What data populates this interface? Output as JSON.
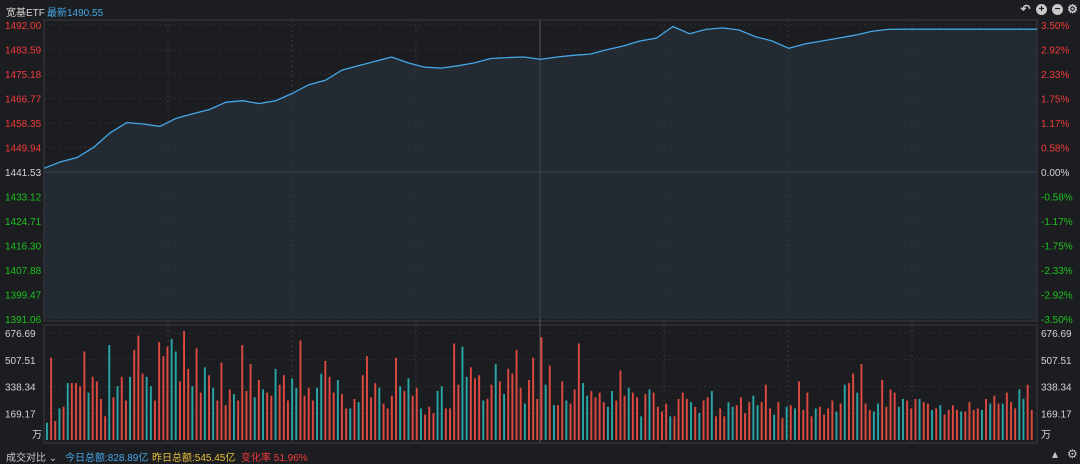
{
  "header": {
    "name": "宽基ETF",
    "latest": "最新1490.55"
  },
  "controls": [
    "undo-icon",
    "zoom-in-icon",
    "zoom-out-icon",
    "settings-icon"
  ],
  "colors": {
    "up": "#f23b3b",
    "down": "#1dc21d",
    "neutral": "#d4d4d4",
    "line": "#45a7e8",
    "vol_up": "#e0493f",
    "vol_down": "#2aa6a6"
  },
  "chart_data": [
    {
      "type": "line",
      "name": "宽基ETF intraday",
      "base": 1441.53,
      "ylim": [
        1391.06,
        1492.0
      ],
      "left_ticks": [
        "1492.00",
        "1483.59",
        "1475.18",
        "1466.77",
        "1458.35",
        "1449.94",
        "1441.53",
        "1433.12",
        "1424.71",
        "1416.30",
        "1407.88",
        "1399.47",
        "1391.06"
      ],
      "right_ticks": [
        "3.50%",
        "2.92%",
        "2.33%",
        "1.75%",
        "1.17%",
        "0.58%",
        "0.00%",
        "-0.58%",
        "-1.17%",
        "-1.75%",
        "-2.33%",
        "-2.92%",
        "-3.50%"
      ],
      "points_index": [
        0,
        4,
        8,
        12,
        16,
        20,
        24,
        28,
        32,
        36,
        40,
        44,
        48,
        52,
        56,
        60,
        64,
        68,
        72,
        76,
        80,
        84,
        88,
        92,
        96,
        100,
        104,
        108,
        112,
        116,
        120,
        124,
        128,
        132,
        136,
        140,
        144,
        148,
        152,
        156,
        160,
        164,
        168,
        172,
        176,
        180,
        184,
        188,
        192,
        196,
        200,
        204,
        208,
        212,
        216,
        220,
        224,
        228,
        232,
        236,
        240
      ],
      "values": [
        1442.8,
        1445.0,
        1446.5,
        1450.0,
        1455.0,
        1458.5,
        1458.0,
        1457.2,
        1460.0,
        1461.5,
        1463.0,
        1465.5,
        1466.0,
        1465.0,
        1466.0,
        1468.5,
        1471.5,
        1473.0,
        1476.5,
        1478.0,
        1479.5,
        1481.0,
        1479.0,
        1477.5,
        1477.2,
        1478.0,
        1479.0,
        1480.5,
        1480.8,
        1481.0,
        1480.2,
        1481.0,
        1481.6,
        1482.0,
        1483.5,
        1484.8,
        1486.5,
        1487.5,
        1491.5,
        1489.0,
        1490.5,
        1491.0,
        1490.3,
        1488.0,
        1486.5,
        1484.0,
        1485.5,
        1486.5,
        1487.5,
        1488.5,
        1489.8,
        1490.5,
        1490.55,
        1490.55,
        1490.55,
        1490.55,
        1490.55,
        1490.55,
        1490.55,
        1490.55,
        1490.55
      ]
    },
    {
      "type": "bar",
      "name": "成交额",
      "ylim": [
        0,
        676.69
      ],
      "ticks": [
        "676.69",
        "507.51",
        "338.34",
        "169.17"
      ],
      "unit": "万",
      "values": [
        110,
        520,
        120,
        200,
        210,
        360,
        360,
        360,
        340,
        560,
        300,
        400,
        370,
        260,
        150,
        600,
        270,
        340,
        400,
        250,
        400,
        570,
        660,
        420,
        400,
        340,
        250,
        620,
        530,
        590,
        640,
        560,
        370,
        690,
        450,
        340,
        580,
        300,
        460,
        410,
        330,
        250,
        490,
        220,
        320,
        290,
        250,
        600,
        310,
        480,
        270,
        380,
        320,
        300,
        280,
        450,
        350,
        410,
        250,
        390,
        330,
        630,
        280,
        330,
        250,
        330,
        420,
        500,
        400,
        300,
        380,
        290,
        200,
        200,
        260,
        240,
        410,
        530,
        270,
        360,
        330,
        230,
        200,
        280,
        520,
        340,
        310,
        390,
        280,
        330,
        200,
        160,
        210,
        170,
        310,
        340,
        200,
        200,
        610,
        350,
        590,
        400,
        460,
        390,
        410,
        250,
        260,
        350,
        480,
        370,
        290,
        450,
        420,
        570,
        330,
        230,
        380,
        520,
        260,
        650,
        350,
        470,
        220,
        220,
        370,
        250,
        230,
        320,
        610,
        360,
        280,
        310,
        270,
        300,
        240,
        210,
        310,
        250,
        440,
        280,
        330,
        300,
        270,
        150,
        290,
        320,
        300,
        210,
        180,
        230,
        150,
        150,
        260,
        300,
        260,
        240,
        210,
        170,
        250,
        270,
        310,
        150,
        200,
        150,
        240,
        210,
        220,
        270,
        170,
        240,
        280,
        220,
        240,
        350,
        200,
        160,
        240,
        140,
        210,
        220,
        200,
        370,
        190,
        300,
        150,
        200,
        210,
        160,
        200,
        250,
        180,
        230,
        350,
        360,
        420,
        300,
        480,
        230,
        190,
        180,
        230,
        380,
        210,
        320,
        300,
        210,
        260,
        250,
        200,
        260,
        260,
        240,
        230,
        190,
        200,
        220,
        160,
        190,
        220,
        190,
        180,
        180,
        240,
        190,
        200,
        190,
        260,
        230,
        280,
        230,
        230,
        300,
        240,
        200,
        320,
        260,
        350,
        190
      ],
      "colors_pattern": "mixed"
    }
  ],
  "footer": {
    "compare": "成交对比",
    "today": "今日总额:828.89亿",
    "yesterday": "昨日总额:545.45亿",
    "change": "变化率 51.96%"
  }
}
